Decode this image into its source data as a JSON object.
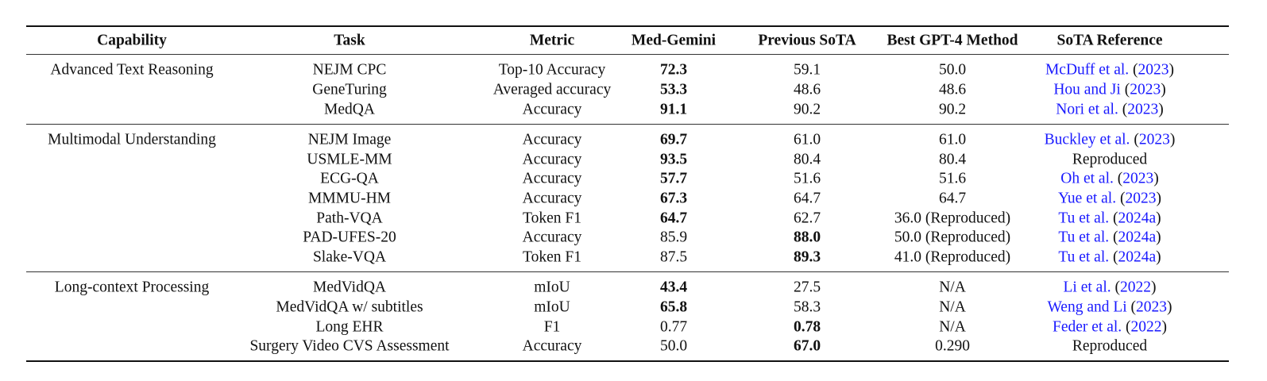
{
  "table": {
    "headers": [
      "Capability",
      "Task",
      "Metric",
      "Med-Gemini",
      "Previous SoTA",
      "Best GPT-4 Method",
      "SoTA Reference"
    ],
    "groups": [
      {
        "capability": "Advanced Text Reasoning",
        "rows": [
          {
            "task": "NEJM CPC",
            "metric": "Top-10 Accuracy",
            "med_gemini": "72.3",
            "previous_sota": "59.1",
            "best_gpt4": "50.0",
            "reference": {
              "authors": "McDuff et al.",
              "year": "2023"
            },
            "bold": "med_gemini"
          },
          {
            "task": "GeneTuring",
            "metric": "Averaged accuracy",
            "med_gemini": "53.3",
            "previous_sota": "48.6",
            "best_gpt4": "48.6",
            "reference": {
              "authors": "Hou and Ji",
              "year": "2023"
            },
            "bold": "med_gemini"
          },
          {
            "task": "MedQA",
            "metric": "Accuracy",
            "med_gemini": "91.1",
            "previous_sota": "90.2",
            "best_gpt4": "90.2",
            "reference": {
              "authors": "Nori et al.",
              "year": "2023"
            },
            "bold": "med_gemini"
          }
        ]
      },
      {
        "capability": "Multimodal Understanding",
        "rows": [
          {
            "task": "NEJM Image",
            "metric": "Accuracy",
            "med_gemini": "69.7",
            "previous_sota": "61.0",
            "best_gpt4": "61.0",
            "reference": {
              "authors": "Buckley et al.",
              "year": "2023"
            },
            "bold": "med_gemini"
          },
          {
            "task": "USMLE-MM",
            "metric": "Accuracy",
            "med_gemini": "93.5",
            "previous_sota": "80.4",
            "best_gpt4": "80.4",
            "reference": {
              "text": "Reproduced"
            },
            "bold": "med_gemini"
          },
          {
            "task": "ECG-QA",
            "metric": "Accuracy",
            "med_gemini": "57.7",
            "previous_sota": "51.6",
            "best_gpt4": "51.6",
            "reference": {
              "authors": "Oh et al.",
              "year": "2023"
            },
            "bold": "med_gemini"
          },
          {
            "task": "MMMU-HM",
            "metric": "Accuracy",
            "med_gemini": "67.3",
            "previous_sota": "64.7",
            "best_gpt4": "64.7",
            "reference": {
              "authors": "Yue et al.",
              "year": "2023"
            },
            "bold": "med_gemini"
          },
          {
            "task": "Path-VQA",
            "metric": "Token F1",
            "med_gemini": "64.7",
            "previous_sota": "62.7",
            "best_gpt4": "36.0 (Reproduced)",
            "reference": {
              "authors": "Tu et al.",
              "year": "2024a"
            },
            "bold": "med_gemini"
          },
          {
            "task": "PAD-UFES-20",
            "metric": "Accuracy",
            "med_gemini": "85.9",
            "previous_sota": "88.0",
            "best_gpt4": "50.0 (Reproduced)",
            "reference": {
              "authors": "Tu et al.",
              "year": "2024a"
            },
            "bold": "previous_sota"
          },
          {
            "task": "Slake-VQA",
            "metric": "Token F1",
            "med_gemini": "87.5",
            "previous_sota": "89.3",
            "best_gpt4": "41.0 (Reproduced)",
            "reference": {
              "authors": "Tu et al.",
              "year": "2024a"
            },
            "bold": "previous_sota"
          }
        ]
      },
      {
        "capability": "Long-context Processing",
        "rows": [
          {
            "task": "MedVidQA",
            "metric": "mIoU",
            "med_gemini": "43.4",
            "previous_sota": "27.5",
            "best_gpt4": "N/A",
            "reference": {
              "authors": "Li et al.",
              "year": "2022"
            },
            "bold": "med_gemini"
          },
          {
            "task": "MedVidQA w/ subtitles",
            "metric": "mIoU",
            "med_gemini": "65.8",
            "previous_sota": "58.3",
            "best_gpt4": "N/A",
            "reference": {
              "authors": "Weng and Li",
              "year": "2023"
            },
            "bold": "med_gemini"
          },
          {
            "task": "Long EHR",
            "metric": "F1",
            "med_gemini": "0.77",
            "previous_sota": "0.78",
            "best_gpt4": "N/A",
            "reference": {
              "authors": "Feder et al.",
              "year": "2022"
            },
            "bold": "previous_sota"
          },
          {
            "task": "Surgery Video CVS Assessment",
            "metric": "Accuracy",
            "med_gemini": "50.0",
            "previous_sota": "67.0",
            "best_gpt4": "0.290",
            "reference": {
              "text": "Reproduced"
            },
            "bold": "previous_sota"
          }
        ]
      }
    ],
    "link_color": "#1a1aff"
  }
}
